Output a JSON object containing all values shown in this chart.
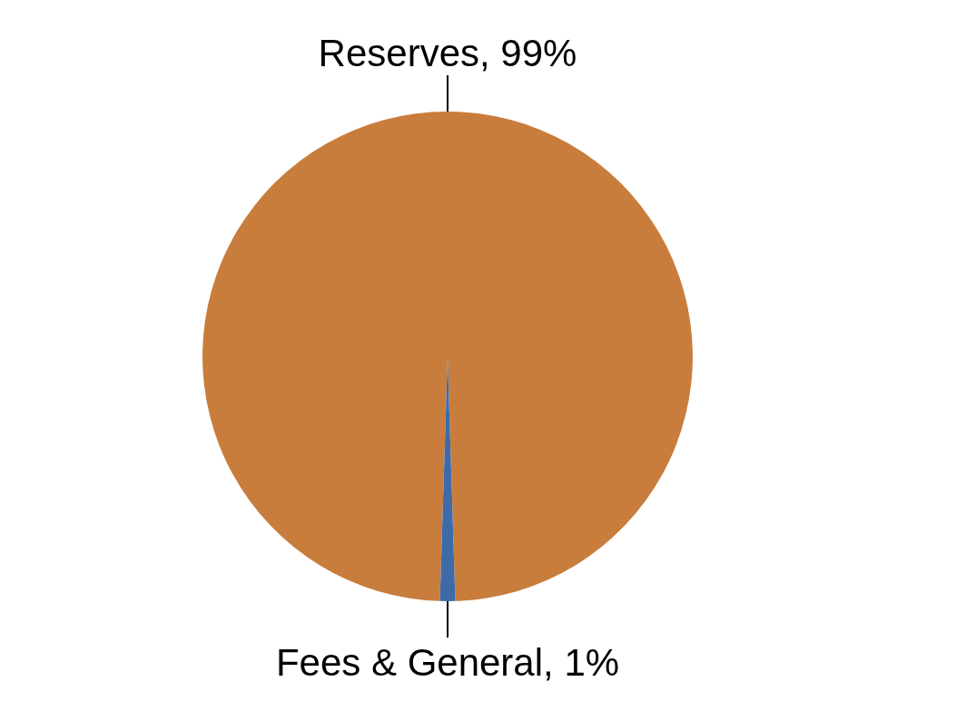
{
  "chart_data": {
    "type": "pie",
    "categories": [
      "Reserves",
      "Fees & General"
    ],
    "values": [
      99,
      1
    ],
    "value_labels": [
      "99%",
      "1%"
    ],
    "colors": [
      "#c97d3c",
      "#3f6aa8"
    ]
  }
}
